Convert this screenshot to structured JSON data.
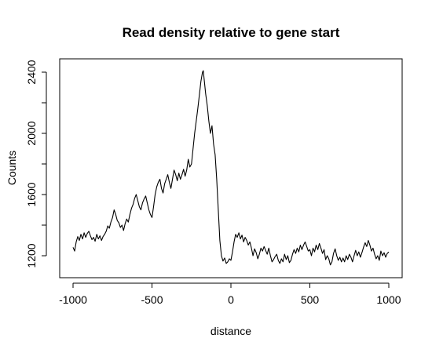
{
  "chart_data": {
    "type": "line",
    "title": "Read density relative to gene start",
    "xlabel": "distance",
    "ylabel": "Counts",
    "xlim": [
      -1000,
      1000
    ],
    "ylim": [
      1130,
      2440
    ],
    "x_ticks": [
      -1000,
      -500,
      0,
      500,
      1000
    ],
    "y_ticks": [
      1200,
      1600,
      2000,
      2400
    ],
    "grid": false,
    "legend": "none",
    "line_color": "#000000",
    "series": [
      {
        "points": [
          [
            -1000,
            1255
          ],
          [
            -990,
            1230
          ],
          [
            -980,
            1290
          ],
          [
            -970,
            1325
          ],
          [
            -960,
            1300
          ],
          [
            -950,
            1340
          ],
          [
            -940,
            1310
          ],
          [
            -930,
            1350
          ],
          [
            -920,
            1320
          ],
          [
            -910,
            1345
          ],
          [
            -900,
            1360
          ],
          [
            -890,
            1330
          ],
          [
            -880,
            1305
          ],
          [
            -870,
            1320
          ],
          [
            -860,
            1295
          ],
          [
            -850,
            1340
          ],
          [
            -840,
            1310
          ],
          [
            -830,
            1330
          ],
          [
            -820,
            1300
          ],
          [
            -810,
            1325
          ],
          [
            -800,
            1340
          ],
          [
            -790,
            1360
          ],
          [
            -780,
            1395
          ],
          [
            -770,
            1380
          ],
          [
            -760,
            1420
          ],
          [
            -750,
            1450
          ],
          [
            -740,
            1500
          ],
          [
            -730,
            1470
          ],
          [
            -720,
            1430
          ],
          [
            -710,
            1415
          ],
          [
            -700,
            1385
          ],
          [
            -690,
            1400
          ],
          [
            -680,
            1365
          ],
          [
            -670,
            1410
          ],
          [
            -660,
            1440
          ],
          [
            -650,
            1420
          ],
          [
            -640,
            1470
          ],
          [
            -630,
            1510
          ],
          [
            -620,
            1535
          ],
          [
            -610,
            1575
          ],
          [
            -600,
            1600
          ],
          [
            -590,
            1560
          ],
          [
            -580,
            1520
          ],
          [
            -570,
            1500
          ],
          [
            -560,
            1545
          ],
          [
            -550,
            1570
          ],
          [
            -540,
            1590
          ],
          [
            -530,
            1545
          ],
          [
            -520,
            1500
          ],
          [
            -510,
            1470
          ],
          [
            -500,
            1450
          ],
          [
            -490,
            1520
          ],
          [
            -480,
            1600
          ],
          [
            -470,
            1650
          ],
          [
            -460,
            1680
          ],
          [
            -450,
            1700
          ],
          [
            -440,
            1640
          ],
          [
            -430,
            1610
          ],
          [
            -420,
            1670
          ],
          [
            -410,
            1700
          ],
          [
            -400,
            1730
          ],
          [
            -390,
            1680
          ],
          [
            -380,
            1640
          ],
          [
            -370,
            1700
          ],
          [
            -360,
            1760
          ],
          [
            -350,
            1730
          ],
          [
            -340,
            1690
          ],
          [
            -330,
            1740
          ],
          [
            -320,
            1700
          ],
          [
            -310,
            1730
          ],
          [
            -300,
            1765
          ],
          [
            -290,
            1720
          ],
          [
            -280,
            1760
          ],
          [
            -270,
            1830
          ],
          [
            -260,
            1780
          ],
          [
            -250,
            1800
          ],
          [
            -240,
            1900
          ],
          [
            -230,
            2000
          ],
          [
            -220,
            2080
          ],
          [
            -210,
            2160
          ],
          [
            -200,
            2250
          ],
          [
            -190,
            2340
          ],
          [
            -180,
            2400
          ],
          [
            -175,
            2410
          ],
          [
            -170,
            2360
          ],
          [
            -160,
            2260
          ],
          [
            -150,
            2180
          ],
          [
            -140,
            2080
          ],
          [
            -130,
            2000
          ],
          [
            -120,
            2050
          ],
          [
            -110,
            1930
          ],
          [
            -100,
            1860
          ],
          [
            -90,
            1700
          ],
          [
            -80,
            1500
          ],
          [
            -70,
            1300
          ],
          [
            -60,
            1200
          ],
          [
            -50,
            1165
          ],
          [
            -40,
            1185
          ],
          [
            -30,
            1150
          ],
          [
            -20,
            1160
          ],
          [
            -10,
            1180
          ],
          [
            0,
            1170
          ],
          [
            10,
            1225
          ],
          [
            20,
            1290
          ],
          [
            30,
            1340
          ],
          [
            40,
            1320
          ],
          [
            50,
            1350
          ],
          [
            60,
            1310
          ],
          [
            70,
            1335
          ],
          [
            80,
            1290
          ],
          [
            90,
            1320
          ],
          [
            100,
            1300
          ],
          [
            110,
            1270
          ],
          [
            120,
            1290
          ],
          [
            130,
            1250
          ],
          [
            140,
            1200
          ],
          [
            150,
            1245
          ],
          [
            160,
            1220
          ],
          [
            170,
            1180
          ],
          [
            180,
            1210
          ],
          [
            190,
            1250
          ],
          [
            200,
            1230
          ],
          [
            210,
            1260
          ],
          [
            220,
            1235
          ],
          [
            230,
            1210
          ],
          [
            240,
            1250
          ],
          [
            250,
            1200
          ],
          [
            260,
            1160
          ],
          [
            270,
            1175
          ],
          [
            280,
            1195
          ],
          [
            290,
            1210
          ],
          [
            300,
            1170
          ],
          [
            310,
            1150
          ],
          [
            320,
            1180
          ],
          [
            330,
            1160
          ],
          [
            340,
            1210
          ],
          [
            350,
            1175
          ],
          [
            360,
            1200
          ],
          [
            370,
            1155
          ],
          [
            380,
            1170
          ],
          [
            390,
            1210
          ],
          [
            400,
            1240
          ],
          [
            410,
            1215
          ],
          [
            420,
            1250
          ],
          [
            430,
            1225
          ],
          [
            440,
            1270
          ],
          [
            450,
            1240
          ],
          [
            460,
            1270
          ],
          [
            470,
            1290
          ],
          [
            480,
            1260
          ],
          [
            490,
            1230
          ],
          [
            500,
            1240
          ],
          [
            510,
            1200
          ],
          [
            520,
            1250
          ],
          [
            530,
            1225
          ],
          [
            540,
            1270
          ],
          [
            550,
            1240
          ],
          [
            560,
            1280
          ],
          [
            570,
            1250
          ],
          [
            580,
            1215
          ],
          [
            590,
            1240
          ],
          [
            600,
            1175
          ],
          [
            610,
            1200
          ],
          [
            620,
            1180
          ],
          [
            630,
            1140
          ],
          [
            640,
            1160
          ],
          [
            650,
            1215
          ],
          [
            660,
            1245
          ],
          [
            670,
            1200
          ],
          [
            680,
            1170
          ],
          [
            690,
            1190
          ],
          [
            700,
            1160
          ],
          [
            710,
            1185
          ],
          [
            720,
            1160
          ],
          [
            730,
            1200
          ],
          [
            740,
            1175
          ],
          [
            750,
            1210
          ],
          [
            760,
            1190
          ],
          [
            770,
            1160
          ],
          [
            780,
            1200
          ],
          [
            790,
            1235
          ],
          [
            800,
            1200
          ],
          [
            810,
            1225
          ],
          [
            820,
            1190
          ],
          [
            830,
            1220
          ],
          [
            840,
            1255
          ],
          [
            850,
            1285
          ],
          [
            860,
            1260
          ],
          [
            870,
            1300
          ],
          [
            880,
            1270
          ],
          [
            890,
            1230
          ],
          [
            900,
            1250
          ],
          [
            910,
            1210
          ],
          [
            920,
            1180
          ],
          [
            930,
            1200
          ],
          [
            940,
            1170
          ],
          [
            950,
            1230
          ],
          [
            960,
            1200
          ],
          [
            970,
            1220
          ],
          [
            980,
            1190
          ],
          [
            990,
            1215
          ],
          [
            1000,
            1225
          ]
        ]
      }
    ]
  }
}
